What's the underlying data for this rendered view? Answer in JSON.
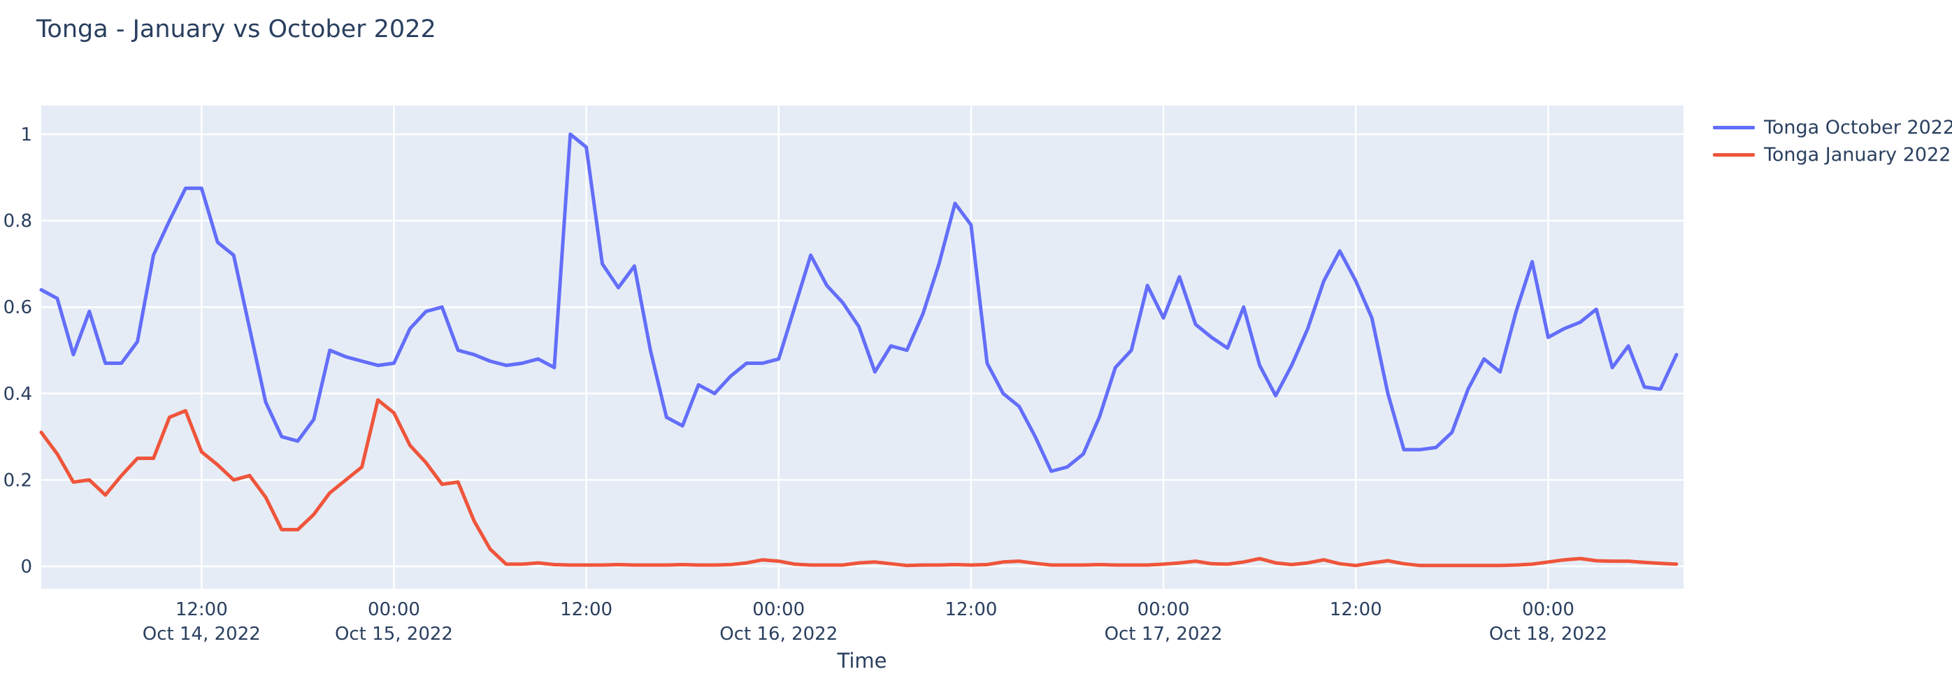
{
  "page_title": "Tonga - January vs October 2022",
  "axis_titles": {
    "x": "Time",
    "y": ""
  },
  "legend": {
    "items": [
      {
        "label": "Tonga October 2022",
        "color": "#636EFA"
      },
      {
        "label": "Tonga January 2022",
        "color": "#EF553B"
      }
    ]
  },
  "chart_data": {
    "type": "line",
    "title": "Tonga - January vs October 2022",
    "xlabel": "Time",
    "ylabel": "",
    "x_start": "2022-10-14 02:00",
    "x_interval_hours": 1,
    "n_points": 103,
    "ylim": [
      -0.052,
      1.066
    ],
    "grid": true,
    "legend_position": "right",
    "colors": {
      "plot_background": "#E5ECF6",
      "grid_line": "#FFFFFF",
      "text": "#2A3F5F",
      "page_background": "#FFFFFF"
    },
    "y_ticks": [
      {
        "value": 0,
        "label": "0"
      },
      {
        "value": 0.2,
        "label": "0.2"
      },
      {
        "value": 0.4,
        "label": "0.4"
      },
      {
        "value": 0.6,
        "label": "0.6"
      },
      {
        "value": 0.8,
        "label": "0.8"
      },
      {
        "value": 1,
        "label": "1"
      }
    ],
    "x_ticks": [
      {
        "hour_offset": 10,
        "line1": "12:00",
        "line2": "Oct 14, 2022"
      },
      {
        "hour_offset": 22,
        "line1": "00:00",
        "line2": "Oct 15, 2022"
      },
      {
        "hour_offset": 34,
        "line1": "12:00",
        "line2": ""
      },
      {
        "hour_offset": 46,
        "line1": "00:00",
        "line2": "Oct 16, 2022"
      },
      {
        "hour_offset": 58,
        "line1": "12:00",
        "line2": ""
      },
      {
        "hour_offset": 70,
        "line1": "00:00",
        "line2": "Oct 17, 2022"
      },
      {
        "hour_offset": 82,
        "line1": "12:00",
        "line2": ""
      },
      {
        "hour_offset": 94,
        "line1": "00:00",
        "line2": "Oct 18, 2022"
      }
    ],
    "series": [
      {
        "name": "Tonga October 2022",
        "color": "#636EFA",
        "values": [
          0.64,
          0.62,
          0.49,
          0.59,
          0.47,
          0.47,
          0.52,
          0.72,
          0.8,
          0.875,
          0.875,
          0.75,
          0.72,
          0.55,
          0.38,
          0.3,
          0.29,
          0.34,
          0.5,
          0.485,
          0.475,
          0.465,
          0.47,
          0.55,
          0.59,
          0.6,
          0.5,
          0.49,
          0.475,
          0.465,
          0.47,
          0.48,
          0.46,
          1.0,
          0.97,
          0.7,
          0.645,
          0.695,
          0.5,
          0.345,
          0.325,
          0.42,
          0.4,
          0.44,
          0.47,
          0.47,
          0.48,
          0.6,
          0.72,
          0.65,
          0.61,
          0.555,
          0.45,
          0.51,
          0.5,
          0.585,
          0.7,
          0.84,
          0.79,
          0.47,
          0.4,
          0.37,
          0.3,
          0.22,
          0.23,
          0.26,
          0.345,
          0.46,
          0.5,
          0.65,
          0.575,
          0.67,
          0.56,
          0.53,
          0.505,
          0.6,
          0.465,
          0.395,
          0.465,
          0.55,
          0.66,
          0.73,
          0.66,
          0.575,
          0.4,
          0.27,
          0.27,
          0.275,
          0.31,
          0.41,
          0.48,
          0.45,
          0.59,
          0.705,
          0.53,
          0.55,
          0.565,
          0.595,
          0.46,
          0.51,
          0.415,
          0.41,
          0.49
        ]
      },
      {
        "name": "Tonga January 2022",
        "color": "#EF553B",
        "values": [
          0.31,
          0.26,
          0.195,
          0.2,
          0.165,
          0.21,
          0.25,
          0.25,
          0.345,
          0.36,
          0.265,
          0.235,
          0.2,
          0.21,
          0.16,
          0.085,
          0.085,
          0.12,
          0.17,
          0.2,
          0.23,
          0.385,
          0.355,
          0.28,
          0.24,
          0.19,
          0.195,
          0.105,
          0.04,
          0.005,
          0.005,
          0.008,
          0.004,
          0.003,
          0.003,
          0.003,
          0.004,
          0.003,
          0.003,
          0.003,
          0.004,
          0.003,
          0.003,
          0.004,
          0.008,
          0.015,
          0.012,
          0.005,
          0.003,
          0.003,
          0.003,
          0.008,
          0.01,
          0.006,
          0.002,
          0.003,
          0.003,
          0.004,
          0.003,
          0.004,
          0.01,
          0.012,
          0.007,
          0.003,
          0.003,
          0.003,
          0.004,
          0.003,
          0.003,
          0.003,
          0.005,
          0.008,
          0.012,
          0.006,
          0.005,
          0.01,
          0.018,
          0.008,
          0.004,
          0.008,
          0.015,
          0.006,
          0.002,
          0.008,
          0.013,
          0.006,
          0.002,
          0.002,
          0.002,
          0.002,
          0.002,
          0.002,
          0.003,
          0.005,
          0.01,
          0.015,
          0.018,
          0.013,
          0.012,
          0.012,
          0.009,
          0.007,
          0.005
        ]
      }
    ]
  }
}
